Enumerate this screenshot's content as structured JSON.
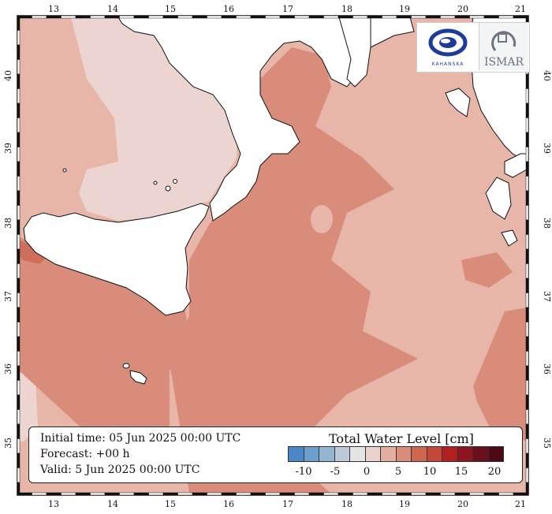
{
  "map": {
    "lon_labels": [
      "13",
      "14",
      "15",
      "16",
      "17",
      "18",
      "19",
      "20",
      "21"
    ],
    "lat_labels": [
      "35",
      "36",
      "37",
      "38",
      "39",
      "40"
    ],
    "colors": {
      "sea_base": "#e7b6a9",
      "sea_light": "#ecd5d0",
      "sea_mid": "#dea291",
      "sea_deep": "#d98c7a",
      "sea_strong": "#cf6e5a",
      "land": "#ffffff",
      "coast": "#111111"
    }
  },
  "info": {
    "initial_time": "Initial time: 05 Jun 2025 00:00 UTC",
    "forecast": "Forecast: +00 h",
    "valid": "Valid:  5 Jun 2025 00:00 UTC"
  },
  "legend": {
    "title": "Total Water Level [cm]",
    "colors": [
      "#4a86c9",
      "#6f9ecc",
      "#94b4d2",
      "#bccad8",
      "#e4e4e4",
      "#ecd2cd",
      "#e4ad9f",
      "#d98c7a",
      "#cc6852",
      "#c4483a",
      "#b02020",
      "#8e1520",
      "#6a0f1c",
      "#4e0a14"
    ],
    "tick_labels": [
      "-10",
      "-5",
      "0",
      "5",
      "10",
      "15",
      "20"
    ]
  },
  "logos": {
    "left_text": "KAHANSKA",
    "right_text": "ISMAR"
  }
}
